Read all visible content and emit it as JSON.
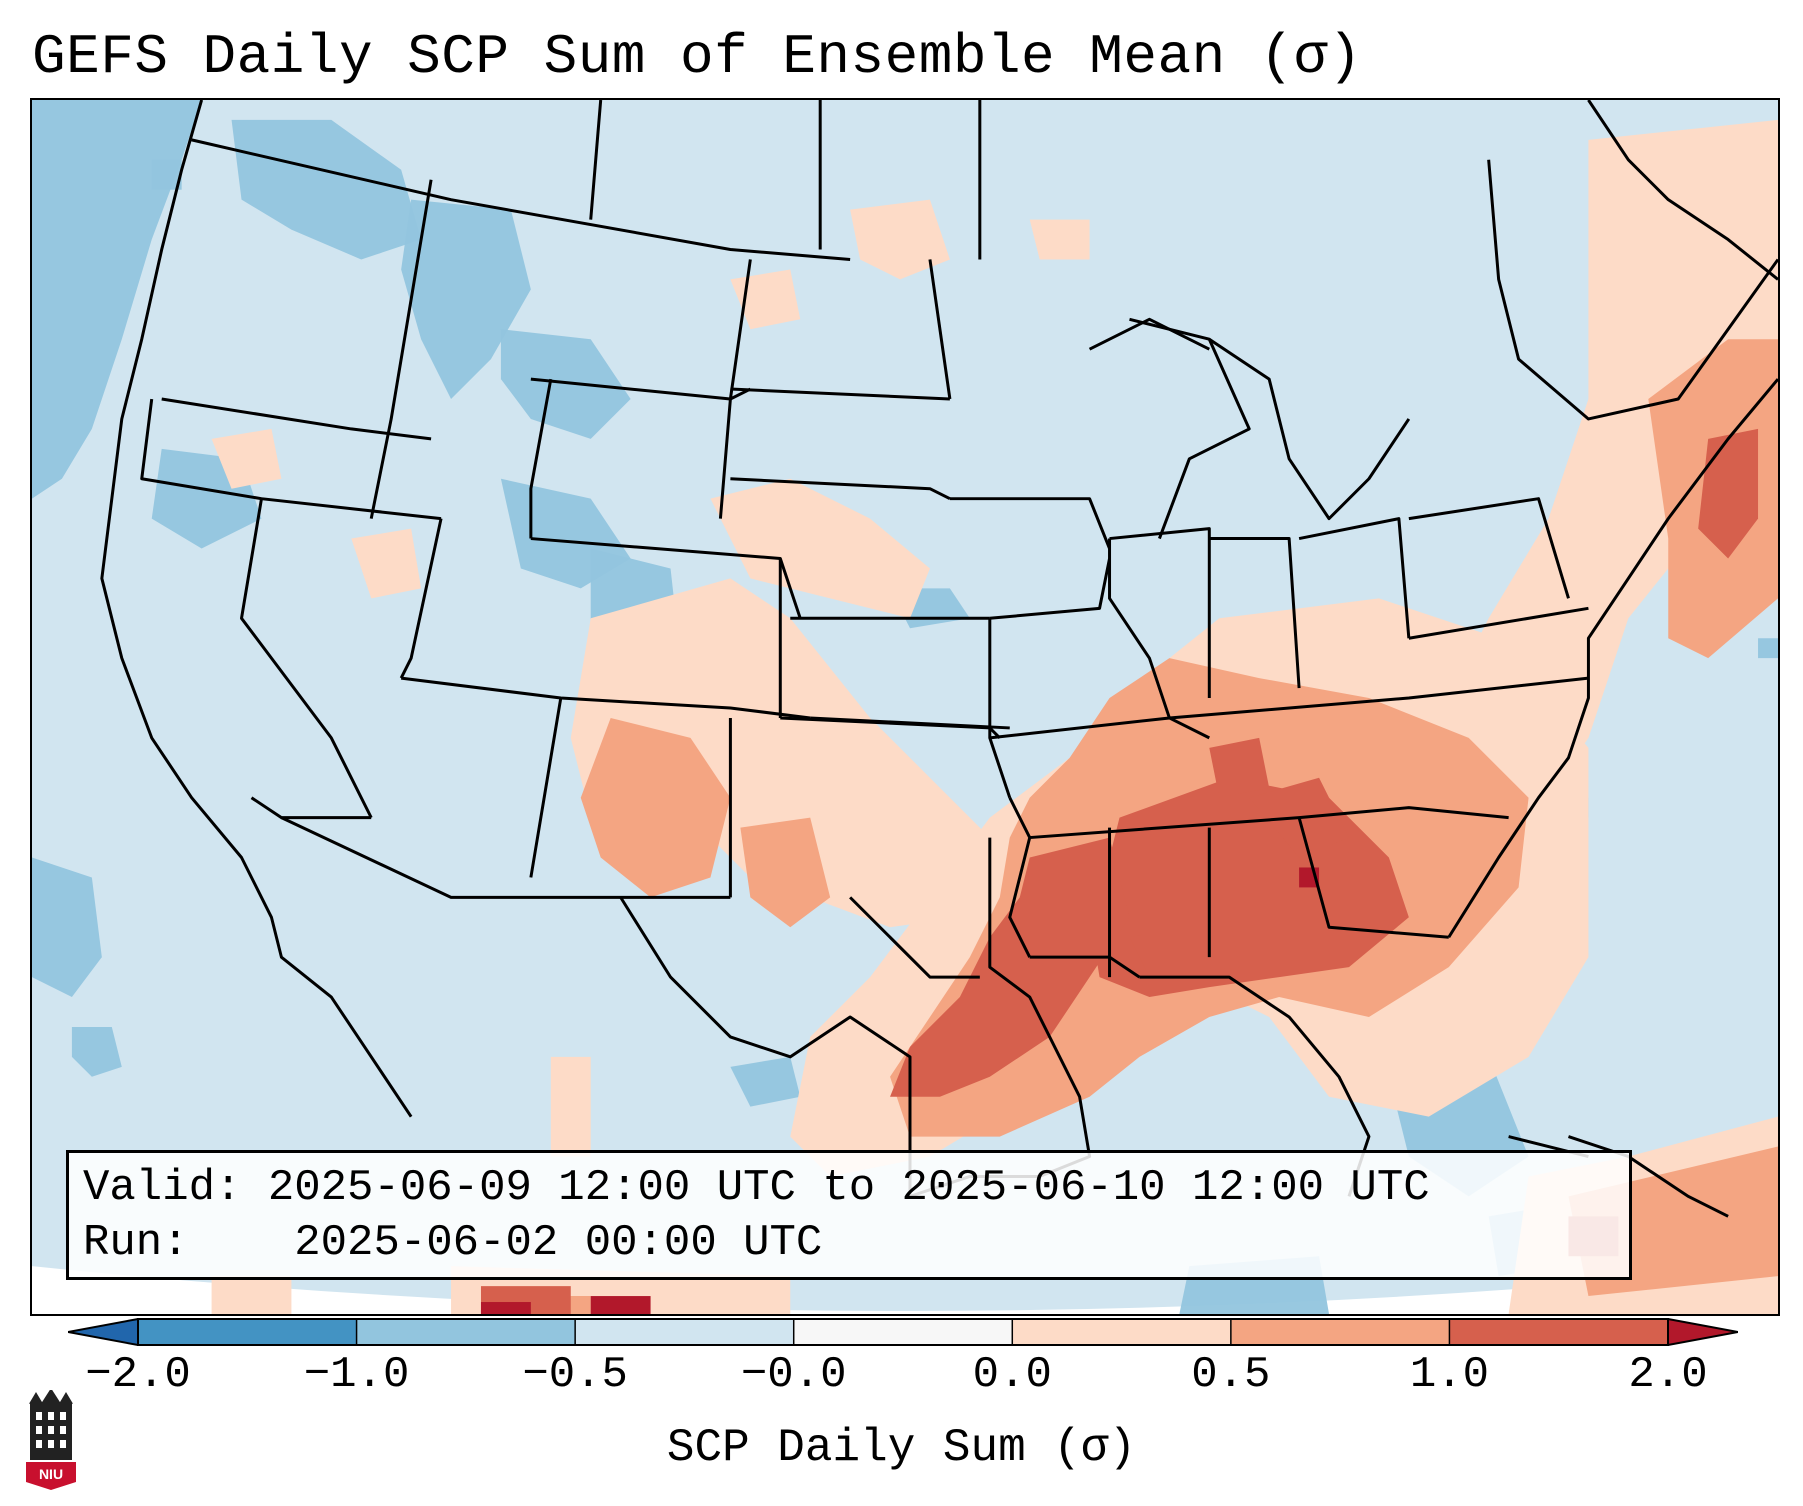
{
  "title": "GEFS Daily SCP Sum of Ensemble Mean (σ)",
  "info": {
    "valid_label": "Valid:",
    "valid_text": "2025-06-09 12:00 UTC to 2025-06-10 12:00 UTC",
    "run_label": "Run:",
    "run_text": "2025-06-02 00:00 UTC"
  },
  "colorbar": {
    "label": "SCP Daily Sum (σ)",
    "ticks": [
      "−2.0",
      "−1.0",
      "−0.5",
      "−0.0",
      "0.0",
      "0.5",
      "1.0",
      "2.0"
    ],
    "colors": [
      "#4393c3",
      "#92c5de",
      "#d1e5f0",
      "#f7f7f7",
      "#fddbc7",
      "#f4a582",
      "#d6604d",
      "#b2182b"
    ],
    "under_color": "#2166ac",
    "over_color": "#b2182b"
  },
  "map": {
    "region": "Contiguous United States",
    "background_color": "#d1e5f0"
  },
  "logo": {
    "text": "NIU"
  }
}
